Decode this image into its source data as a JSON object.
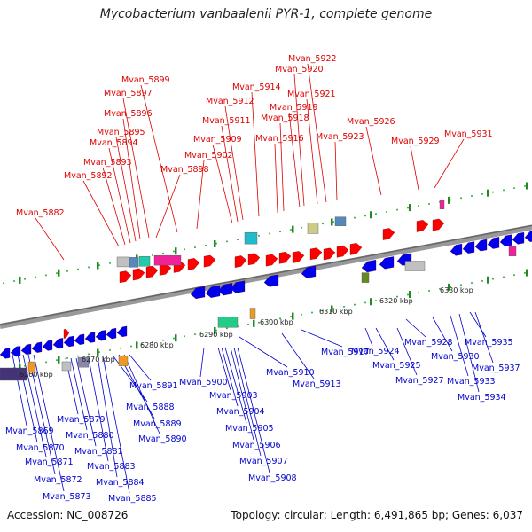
{
  "title": "Mycobacterium vanbaalenii PYR-1, complete genome",
  "footer": {
    "accession": "Accession: NC_008726",
    "topology": "Topology: circular; Length: 6,491,865 bp; Genes: 6,037"
  },
  "scale_labels": [
    "6260 kbp",
    "6270 kbp",
    "6280 kbp",
    "6290 kbp",
    "6300 kbp",
    "6310 kbp",
    "6320 kbp",
    "6330 kbp"
  ],
  "red_labels": [
    "Mvan_5882",
    "Mvan_5892",
    "Mvan_5893",
    "Mvan_5894",
    "Mvan_5895",
    "Mvan_5896",
    "Mvan_5897",
    "Mvan_5899",
    "Mvan_5898",
    "Mvan_5902",
    "Mvan_5909",
    "Mvan_5911",
    "Mvan_5912",
    "Mvan_5914",
    "Mvan_5916",
    "Mvan_5918",
    "Mvan_5919",
    "Mvan_5920",
    "Mvan_5921",
    "Mvan_5922",
    "Mvan_5923",
    "Mvan_5926",
    "Mvan_5929",
    "Mvan_5931"
  ],
  "blue_labels": [
    "Mvan_5869",
    "Mvan_5870",
    "Mvan_5871",
    "Mvan_5872",
    "Mvan_5873",
    "Mvan_5879",
    "Mvan_5880",
    "Mvan_5881",
    "Mvan_5883",
    "Mvan_5884",
    "Mvan_5885",
    "Mvan_5888",
    "Mvan_5889",
    "Mvan_5890",
    "Mvan_5891",
    "Mvan_5900",
    "Mvan_5903",
    "Mvan_5904",
    "Mvan_5905",
    "Mvan_5906",
    "Mvan_5907",
    "Mvan_5908",
    "Mvan_5910",
    "Mvan_5913",
    "Mvan_5917",
    "Mvan_5924",
    "Mvan_5925",
    "Mvan_5927",
    "Mvan_5928",
    "Mvan_5930",
    "Mvan_5933",
    "Mvan_5934",
    "Mvan_5935",
    "Mvan_5937"
  ],
  "colors": {
    "forward": "#ff0000",
    "reverse": "#0000ee",
    "backbone": "#888888",
    "tick": "#33aa33"
  }
}
